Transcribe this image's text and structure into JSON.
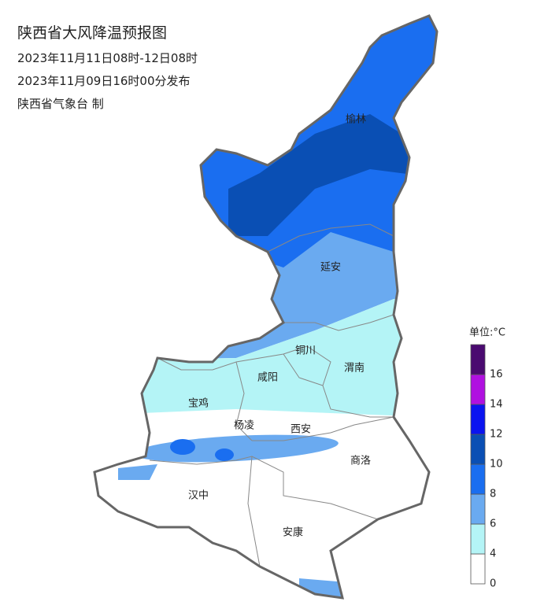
{
  "header": {
    "title": "陕西省大风降温预报图",
    "valid": "2023年11月11日08时-12日08时",
    "issued": "2023年11月09日16时00分发布",
    "issuer": "陕西省气象台 制"
  },
  "cities": [
    "榆林",
    "延安",
    "铜川",
    "渭南",
    "咸阳",
    "宝鸡",
    "杨凌",
    "西安",
    "商洛",
    "汉中",
    "安康"
  ],
  "legend": {
    "unit": "单位:°C",
    "ticks": [
      0,
      4,
      6,
      8,
      10,
      12,
      14,
      16
    ],
    "colors": [
      "#ffffff",
      "#b4f4f6",
      "#6aaaf0",
      "#1a6ef0",
      "#0a4fb4",
      "#0a14f0",
      "#b010e0",
      "#4a0a70"
    ]
  }
}
